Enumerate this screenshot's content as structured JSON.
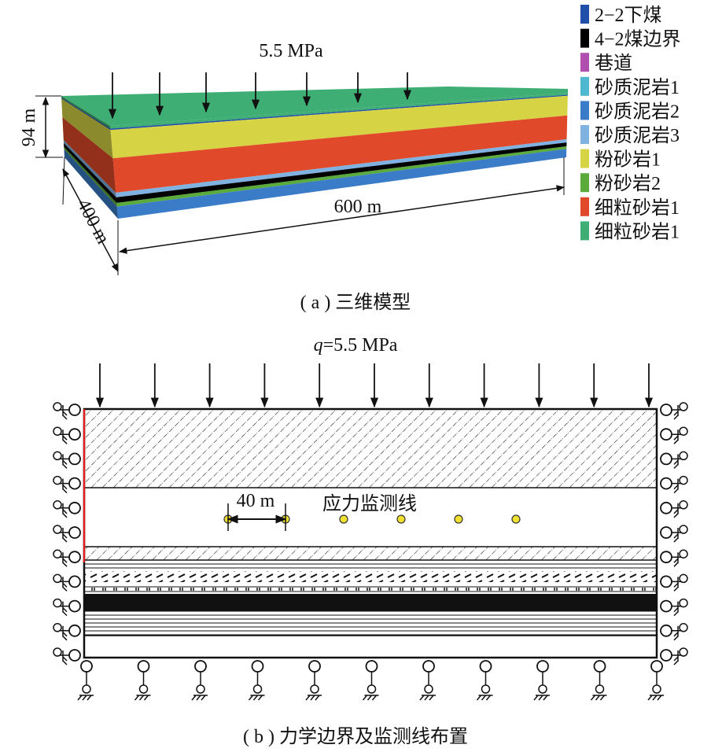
{
  "figure_a": {
    "load": "5.5 MPa",
    "height": "94 m",
    "width": "400 m",
    "length": "600 m",
    "caption": "( a ) 三维模型",
    "legend": [
      {
        "label": "2−2下煤",
        "color": "#1f4fa8"
      },
      {
        "label": "4−2煤边界",
        "color": "#000000"
      },
      {
        "label": "巷道",
        "color": "#b04fb0"
      },
      {
        "label": "砂质泥岩1",
        "color": "#4fb8d0"
      },
      {
        "label": "砂质泥岩2",
        "color": "#3a7cc8"
      },
      {
        "label": "砂质泥岩3",
        "color": "#7fb2e0"
      },
      {
        "label": "粉砂岩1",
        "color": "#d6d445"
      },
      {
        "label": "粉砂岩2",
        "color": "#5aab3c"
      },
      {
        "label": "细粒砂岩1",
        "color": "#e04a2a"
      },
      {
        "label": "细粒砂岩1",
        "color": "#3fae74"
      }
    ]
  },
  "figure_b": {
    "load_symbol": "q",
    "load": "=5.5 MPa",
    "spacing": "40 m",
    "monitor_line": "应力监测线",
    "caption": "( b ) 力学边界及监测线布置"
  }
}
